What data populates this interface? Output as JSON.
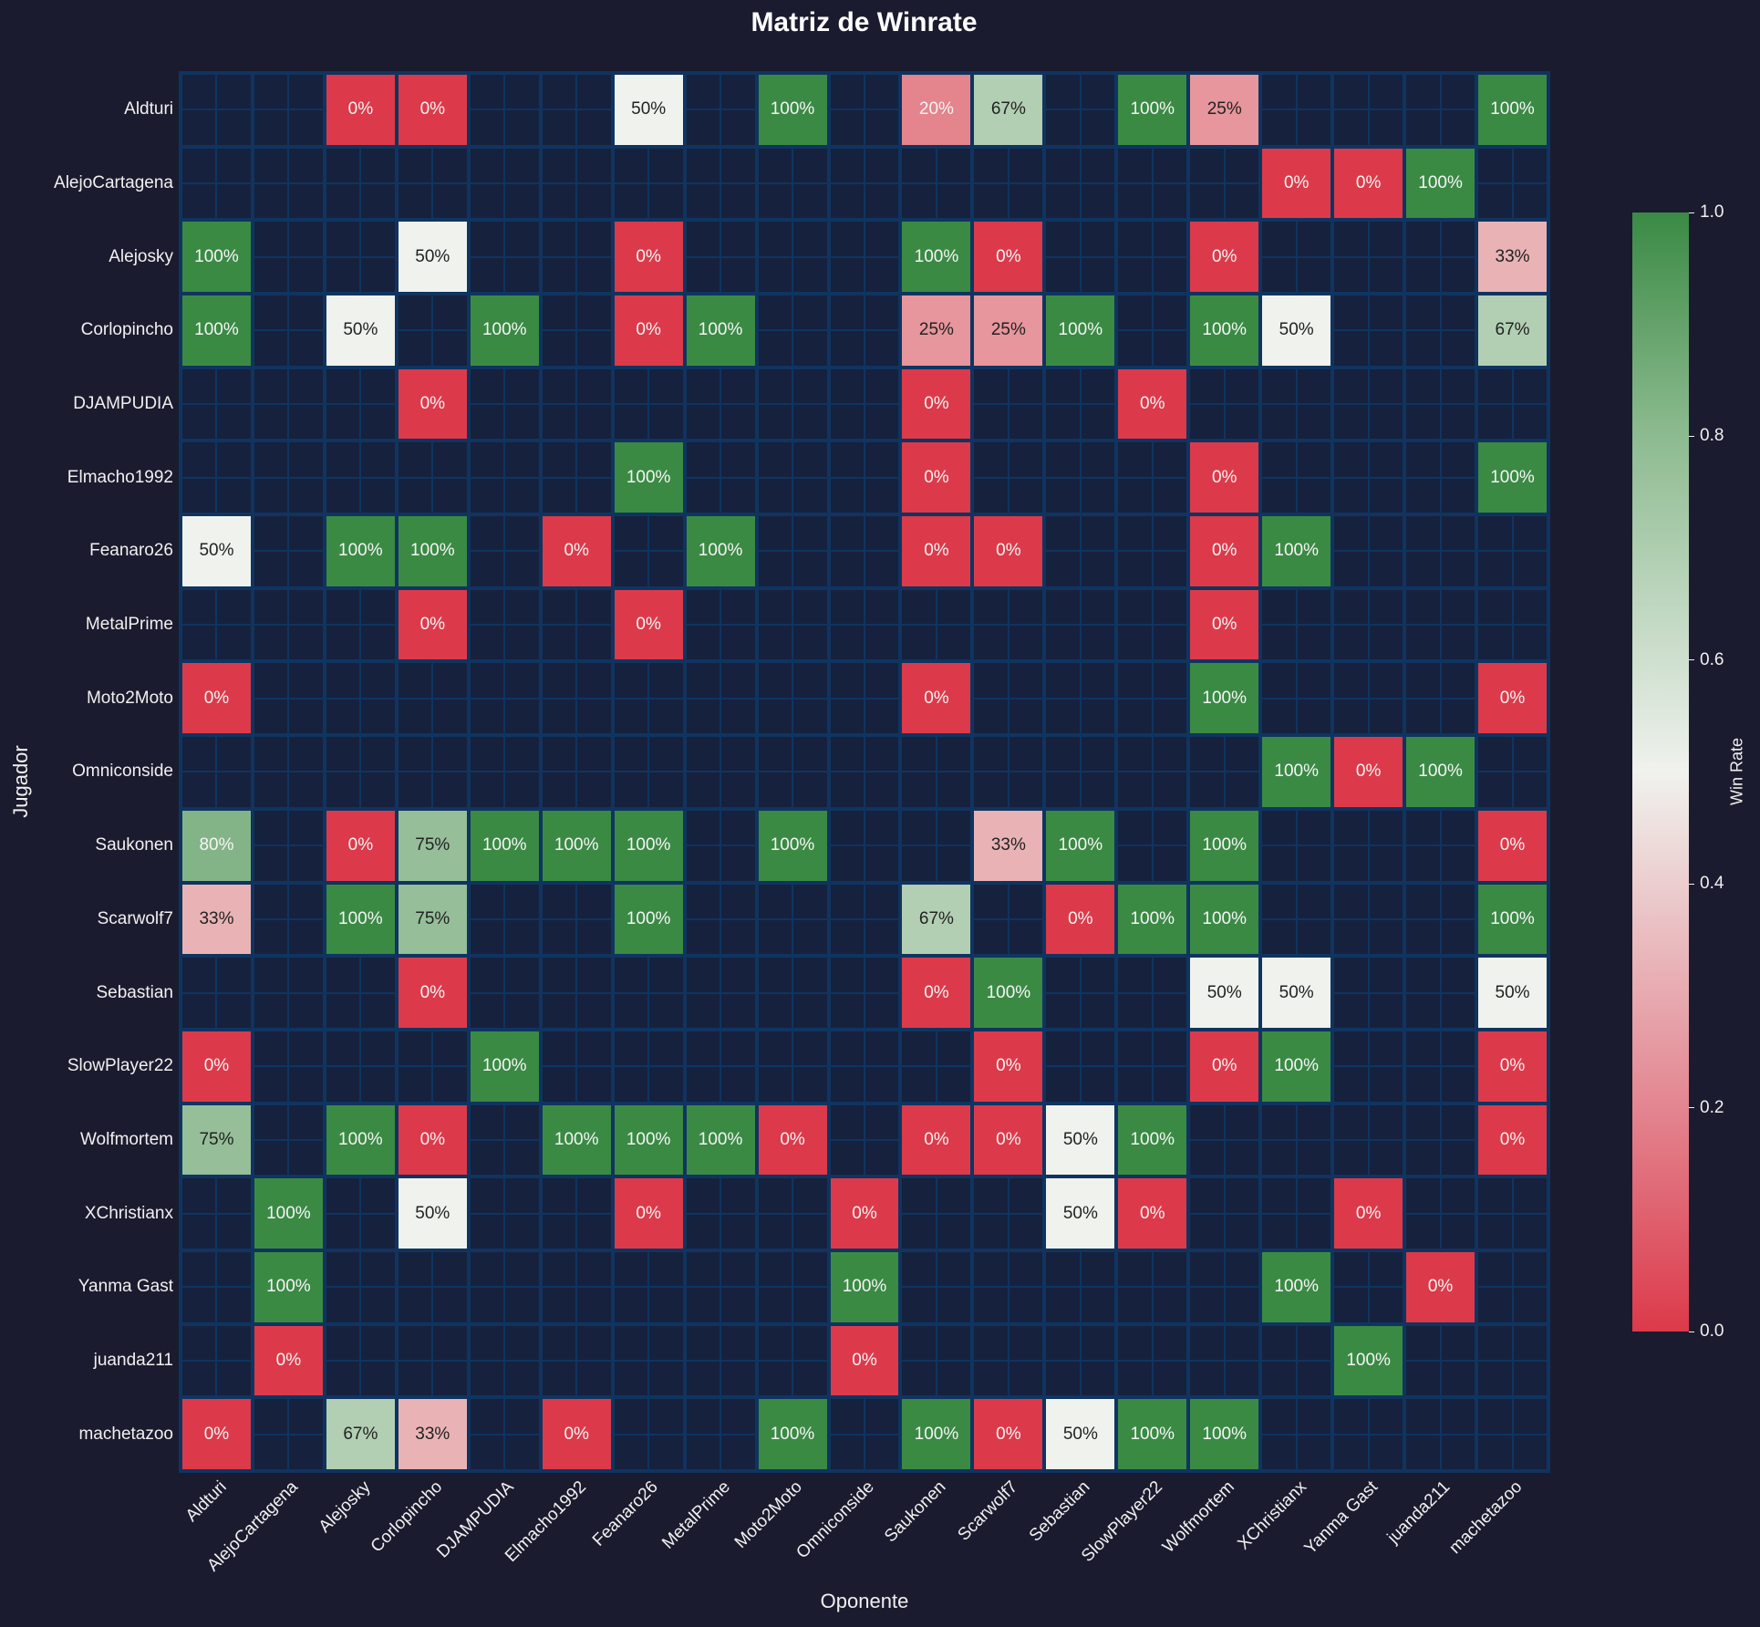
{
  "title": "Matriz de Winrate",
  "xlabel": "Oponente",
  "ylabel": "Jugador",
  "colorbar": {
    "label": "Win Rate",
    "ticks": [
      "1.0",
      "0.8",
      "0.6",
      "0.4",
      "0.2",
      "0.0"
    ],
    "min_color": "#dc3a4a",
    "mid_color": "#f0f2ee",
    "max_color": "#3a8a44"
  },
  "colors": {
    "background": "#1b1b2f",
    "empty_cell": "#16213e",
    "grid_line": "#0f3460"
  },
  "chart_data": {
    "type": "heatmap",
    "title": "Matriz de Winrate",
    "xlabel": "Oponente",
    "ylabel": "Jugador",
    "colorbar_label": "Win Rate",
    "vrange": [
      0,
      1
    ],
    "rows": [
      "Aldturi",
      "AlejoCartagena",
      "Alejosky",
      "Corlopincho",
      "DJAMPUDIA",
      "Elmacho1992",
      "Feanaro26",
      "MetalPrime",
      "Moto2Moto",
      "Omniconside",
      "Saukonen",
      "Scarwolf7",
      "Sebastian",
      "SlowPlayer22",
      "Wolfmortem",
      "XChristianx",
      "Yanma Gast",
      "juanda211",
      "machetazoo"
    ],
    "cols": [
      "Aldturi",
      "AlejoCartagena",
      "Alejosky",
      "Corlopincho",
      "DJAMPUDIA",
      "Elmacho1992",
      "Feanaro26",
      "MetalPrime",
      "Moto2Moto",
      "Omniconside",
      "Saukonen",
      "Scarwolf7",
      "Sebastian",
      "SlowPlayer22",
      "Wolfmortem",
      "XChristianx",
      "Yanma Gast",
      "juanda211",
      "machetazoo"
    ],
    "values": [
      [
        null,
        null,
        0,
        0,
        null,
        null,
        50,
        null,
        100,
        null,
        20,
        67,
        null,
        100,
        25,
        null,
        null,
        null,
        100
      ],
      [
        null,
        null,
        null,
        null,
        null,
        null,
        null,
        null,
        null,
        null,
        null,
        null,
        null,
        null,
        null,
        0,
        0,
        100,
        null
      ],
      [
        100,
        null,
        null,
        50,
        null,
        null,
        0,
        null,
        null,
        null,
        100,
        0,
        null,
        null,
        0,
        null,
        null,
        null,
        33
      ],
      [
        100,
        null,
        50,
        null,
        100,
        null,
        0,
        100,
        null,
        null,
        25,
        25,
        100,
        null,
        100,
        50,
        null,
        null,
        67
      ],
      [
        null,
        null,
        null,
        0,
        null,
        null,
        null,
        null,
        null,
        null,
        0,
        null,
        null,
        0,
        null,
        null,
        null,
        null,
        null
      ],
      [
        null,
        null,
        null,
        null,
        null,
        null,
        100,
        null,
        null,
        null,
        0,
        null,
        null,
        null,
        0,
        null,
        null,
        null,
        100
      ],
      [
        50,
        null,
        100,
        100,
        null,
        0,
        null,
        100,
        null,
        null,
        0,
        0,
        null,
        null,
        0,
        100,
        null,
        null,
        null
      ],
      [
        null,
        null,
        null,
        0,
        null,
        null,
        0,
        null,
        null,
        null,
        null,
        null,
        null,
        null,
        0,
        null,
        null,
        null,
        null
      ],
      [
        0,
        null,
        null,
        null,
        null,
        null,
        null,
        null,
        null,
        null,
        0,
        null,
        null,
        null,
        100,
        null,
        null,
        null,
        0
      ],
      [
        null,
        null,
        null,
        null,
        null,
        null,
        null,
        null,
        null,
        null,
        null,
        null,
        null,
        null,
        null,
        100,
        0,
        100,
        null
      ],
      [
        80,
        null,
        0,
        75,
        100,
        100,
        100,
        null,
        100,
        null,
        null,
        33,
        100,
        null,
        100,
        null,
        null,
        null,
        0
      ],
      [
        33,
        null,
        100,
        75,
        null,
        null,
        100,
        null,
        null,
        null,
        67,
        null,
        0,
        100,
        100,
        null,
        null,
        null,
        100
      ],
      [
        null,
        null,
        null,
        0,
        null,
        null,
        null,
        null,
        null,
        null,
        0,
        100,
        null,
        null,
        50,
        50,
        null,
        null,
        50
      ],
      [
        0,
        null,
        null,
        null,
        100,
        null,
        null,
        null,
        null,
        null,
        null,
        0,
        null,
        null,
        0,
        100,
        null,
        null,
        0
      ],
      [
        75,
        null,
        100,
        0,
        null,
        100,
        100,
        100,
        0,
        null,
        0,
        0,
        50,
        100,
        null,
        null,
        null,
        null,
        0
      ],
      [
        null,
        100,
        null,
        50,
        null,
        null,
        0,
        null,
        null,
        0,
        null,
        null,
        50,
        0,
        null,
        null,
        0,
        null,
        null
      ],
      [
        null,
        100,
        null,
        null,
        null,
        null,
        null,
        null,
        null,
        100,
        null,
        null,
        null,
        null,
        null,
        100,
        null,
        0,
        null
      ],
      [
        null,
        0,
        null,
        null,
        null,
        null,
        null,
        null,
        null,
        0,
        null,
        null,
        null,
        null,
        null,
        null,
        100,
        null,
        null
      ],
      [
        0,
        null,
        67,
        33,
        null,
        0,
        null,
        null,
        100,
        null,
        100,
        0,
        50,
        100,
        100,
        null,
        null,
        null,
        null
      ]
    ]
  }
}
